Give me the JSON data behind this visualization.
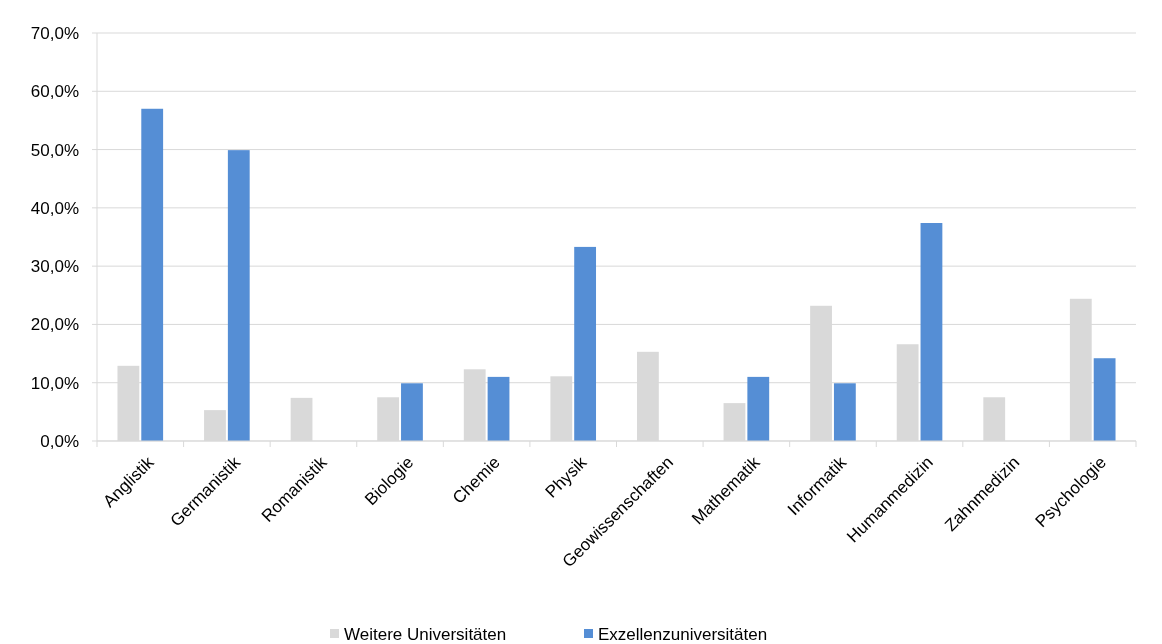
{
  "chart_data": {
    "type": "bar",
    "categories": [
      "Anglistik",
      "Germanistik",
      "Romanistik",
      "Biologie",
      "Chemie",
      "Physik",
      "Geowissenschaften",
      "Mathematik",
      "Informatik",
      "Humanmedizin",
      "Zahnmedizin",
      "Psychologie"
    ],
    "series": [
      {
        "name": "Weitere Universitäten",
        "color": "#d9d9d9",
        "values": [
          12.9,
          5.3,
          7.4,
          7.5,
          12.3,
          11.1,
          15.3,
          6.5,
          23.2,
          16.6,
          7.5,
          24.4
        ]
      },
      {
        "name": "Exzellenzuniversitäten",
        "color": "#558ed5",
        "values": [
          57.0,
          49.9,
          null,
          9.9,
          11.0,
          33.3,
          null,
          11.0,
          9.9,
          37.4,
          null,
          14.2
        ]
      }
    ],
    "ylim": [
      0,
      70
    ],
    "yticks": [
      {
        "value": 0,
        "label": "0,0%"
      },
      {
        "value": 10,
        "label": "10,0%"
      },
      {
        "value": 20,
        "label": "20,0%"
      },
      {
        "value": 30,
        "label": "30,0%"
      },
      {
        "value": 40,
        "label": "40,0%"
      },
      {
        "value": 50,
        "label": "50,0%"
      },
      {
        "value": 60,
        "label": "60,0%"
      },
      {
        "value": 70,
        "label": "70,0%"
      }
    ],
    "grid": "y",
    "legend": "bottom"
  }
}
